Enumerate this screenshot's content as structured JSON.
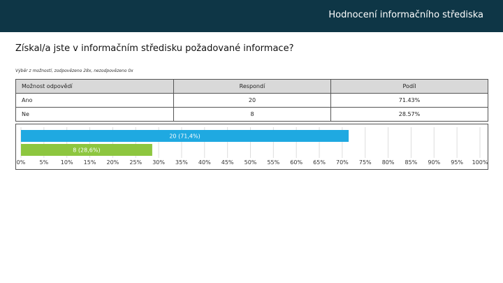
{
  "header": {
    "title": "Hodnocení informačního střediska"
  },
  "question": {
    "text": "Získal/a jste v informačním středisku požadované informace?"
  },
  "meta": {
    "summary": "Výběr z možností, zodpovězeno 28x, nezodpovězeno 0x"
  },
  "table": {
    "headers": [
      "Možnost odpovědí",
      "Respondí",
      "Podíl"
    ],
    "rows": [
      {
        "option": "Ano",
        "count": "20",
        "share": "71.43%"
      },
      {
        "option": "Ne",
        "count": "8",
        "share": "28.57%"
      }
    ]
  },
  "chart_data": {
    "type": "bar",
    "orientation": "horizontal",
    "categories": [
      "Ano",
      "Ne"
    ],
    "values": [
      71.4,
      28.6
    ],
    "data_labels": [
      "20 (71,4%)",
      "8 (28,6%)"
    ],
    "colors": [
      "#1fa9e1",
      "#8dc63f"
    ],
    "xlim": [
      0,
      100
    ],
    "xticks": [
      "0%",
      "5%",
      "10%",
      "15%",
      "20%",
      "25%",
      "30%",
      "35%",
      "40%",
      "45%",
      "50%",
      "55%",
      "60%",
      "65%",
      "70%",
      "75%",
      "80%",
      "85%",
      "90%",
      "95%",
      "100%"
    ],
    "grid": true
  }
}
